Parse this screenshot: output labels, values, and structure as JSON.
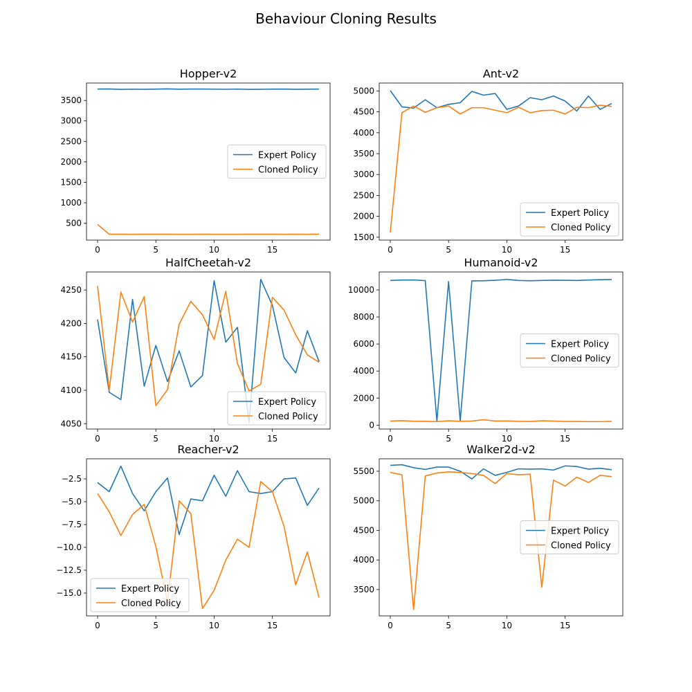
{
  "figure": {
    "title": "Behaviour Cloning Results"
  },
  "colors": {
    "expert": "#1f77b4",
    "cloned": "#ff7f0e"
  },
  "chart_data": [
    {
      "type": "line",
      "title": "Hopper-v2",
      "xlabel": "",
      "ylabel": "",
      "x": [
        0,
        1,
        2,
        3,
        4,
        5,
        6,
        7,
        8,
        9,
        10,
        11,
        12,
        13,
        14,
        15,
        16,
        17,
        18,
        19
      ],
      "xticks": [
        0,
        5,
        10,
        15
      ],
      "yticks": [
        500,
        1000,
        1500,
        2000,
        2500,
        3000,
        3500
      ],
      "xlim": [
        -0.95,
        19.95
      ],
      "ylim": [
        88,
        3925
      ],
      "legend": "center-right",
      "series": [
        {
          "name": "Expert Policy",
          "values": [
            3778,
            3780,
            3770,
            3775,
            3772,
            3776,
            3782,
            3774,
            3779,
            3778,
            3775,
            3773,
            3777,
            3770,
            3772,
            3776,
            3778,
            3771,
            3774,
            3779
          ]
        },
        {
          "name": "Cloned Policy",
          "values": [
            470,
            232,
            232,
            230,
            232,
            233,
            232,
            231,
            231,
            232,
            230,
            231,
            231,
            232,
            232,
            233,
            231,
            232,
            231,
            232
          ]
        }
      ]
    },
    {
      "type": "line",
      "title": "Ant-v2",
      "xlabel": "",
      "ylabel": "",
      "x": [
        0,
        1,
        2,
        3,
        4,
        5,
        6,
        7,
        8,
        9,
        10,
        11,
        12,
        13,
        14,
        15,
        16,
        17,
        18,
        19
      ],
      "xticks": [
        0,
        5,
        10,
        15
      ],
      "yticks": [
        1500,
        2000,
        2500,
        3000,
        3500,
        4000,
        4500,
        5000
      ],
      "xlim": [
        -0.95,
        19.95
      ],
      "ylim": [
        1430,
        5190
      ],
      "legend": "bottom-right",
      "series": [
        {
          "name": "Expert Policy",
          "values": [
            5010,
            4620,
            4590,
            4790,
            4600,
            4680,
            4720,
            4990,
            4900,
            4940,
            4560,
            4640,
            4840,
            4790,
            4880,
            4760,
            4520,
            4880,
            4560,
            4700
          ]
        },
        {
          "name": "Cloned Policy",
          "values": [
            1610,
            4480,
            4640,
            4490,
            4600,
            4640,
            4450,
            4600,
            4600,
            4540,
            4480,
            4610,
            4480,
            4530,
            4540,
            4450,
            4610,
            4600,
            4660,
            4630
          ]
        }
      ]
    },
    {
      "type": "line",
      "title": "HalfCheetah-v2",
      "xlabel": "",
      "ylabel": "",
      "x": [
        0,
        1,
        2,
        3,
        4,
        5,
        6,
        7,
        8,
        9,
        10,
        11,
        12,
        13,
        14,
        15,
        16,
        17,
        18,
        19
      ],
      "xticks": [
        0,
        5,
        10,
        15
      ],
      "yticks": [
        4050,
        4100,
        4150,
        4200,
        4250
      ],
      "xlim": [
        -0.95,
        19.95
      ],
      "ylim": [
        4042,
        4277
      ],
      "legend": "bottom-right",
      "series": [
        {
          "name": "Expert Policy",
          "values": [
            4206,
            4097,
            4086,
            4236,
            4106,
            4167,
            4113,
            4159,
            4105,
            4122,
            4264,
            4172,
            4194,
            4052,
            4266,
            4227,
            4149,
            4126,
            4189,
            4143
          ]
        },
        {
          "name": "Cloned Policy",
          "values": [
            4256,
            4100,
            4247,
            4202,
            4240,
            4077,
            4101,
            4199,
            4233,
            4213,
            4176,
            4248,
            4140,
            4099,
            4109,
            4239,
            4220,
            4183,
            4153,
            4142
          ]
        }
      ]
    },
    {
      "type": "line",
      "title": "Humanoid-v2",
      "xlabel": "",
      "ylabel": "",
      "x": [
        0,
        1,
        2,
        3,
        4,
        5,
        6,
        7,
        8,
        9,
        10,
        11,
        12,
        13,
        14,
        15,
        16,
        17,
        18,
        19
      ],
      "xticks": [
        0,
        5,
        10,
        15
      ],
      "yticks": [
        0,
        2000,
        4000,
        6000,
        8000,
        10000
      ],
      "xlim": [
        -0.95,
        19.95
      ],
      "ylim": [
        -290,
        11330
      ],
      "legend": "center-right",
      "series": [
        {
          "name": "Expert Policy",
          "values": [
            10700,
            10730,
            10740,
            10690,
            300,
            10620,
            300,
            10670,
            10680,
            10710,
            10780,
            10700,
            10680,
            10700,
            10720,
            10710,
            10700,
            10730,
            10760,
            10770
          ]
        },
        {
          "name": "Cloned Policy",
          "values": [
            300,
            330,
            290,
            280,
            260,
            320,
            280,
            300,
            400,
            300,
            310,
            280,
            270,
            320,
            300,
            270,
            270,
            260,
            260,
            280
          ]
        }
      ]
    },
    {
      "type": "line",
      "title": "Reacher-v2",
      "xlabel": "",
      "ylabel": "",
      "x": [
        0,
        1,
        2,
        3,
        4,
        5,
        6,
        7,
        8,
        9,
        10,
        11,
        12,
        13,
        14,
        15,
        16,
        17,
        18,
        19
      ],
      "xticks": [
        0,
        5,
        10,
        15
      ],
      "yticks": [
        -15.0,
        -12.5,
        -10.0,
        -7.5,
        -5.0,
        -2.5
      ],
      "ytick_labels": [
        "−15.0",
        "−12.5",
        "−10.0",
        "−7.5",
        "−5.0",
        "−2.5"
      ],
      "xlim": [
        -0.95,
        19.95
      ],
      "ylim": [
        -17.5,
        -0.3
      ],
      "legend": "bottom-left",
      "series": [
        {
          "name": "Expert Policy",
          "values": [
            -2.9,
            -3.9,
            -1.1,
            -4.1,
            -6.0,
            -3.9,
            -2.4,
            -8.6,
            -4.7,
            -4.9,
            -2.1,
            -4.4,
            -1.6,
            -3.9,
            -4.1,
            -3.9,
            -2.5,
            -2.4,
            -5.4,
            -3.5
          ]
        },
        {
          "name": "Cloned Policy",
          "values": [
            -4.1,
            -6.1,
            -8.7,
            -6.4,
            -5.3,
            -9.9,
            -16.0,
            -4.9,
            -6.3,
            -16.7,
            -14.7,
            -11.4,
            -9.1,
            -10.0,
            -2.8,
            -3.9,
            -7.7,
            -14.1,
            -10.5,
            -15.5
          ]
        }
      ]
    },
    {
      "type": "line",
      "title": "Walker2d-v2",
      "xlabel": "",
      "ylabel": "",
      "x": [
        0,
        1,
        2,
        3,
        4,
        5,
        6,
        7,
        8,
        9,
        10,
        11,
        12,
        13,
        14,
        15,
        16,
        17,
        18,
        19
      ],
      "xticks": [
        0,
        5,
        10,
        15
      ],
      "yticks": [
        3500,
        4000,
        4500,
        5000,
        5500
      ],
      "xlim": [
        -0.95,
        19.95
      ],
      "ylim": [
        3055,
        5710
      ],
      "legend": "center-right",
      "series": [
        {
          "name": "Expert Policy",
          "values": [
            5600,
            5610,
            5560,
            5530,
            5570,
            5570,
            5500,
            5370,
            5540,
            5430,
            5480,
            5540,
            5535,
            5540,
            5520,
            5590,
            5580,
            5535,
            5550,
            5525
          ]
        },
        {
          "name": "Cloned Policy",
          "values": [
            5480,
            5440,
            3160,
            5420,
            5470,
            5490,
            5480,
            5460,
            5430,
            5290,
            5460,
            5440,
            5450,
            3540,
            5350,
            5250,
            5400,
            5310,
            5430,
            5410
          ]
        }
      ]
    }
  ]
}
